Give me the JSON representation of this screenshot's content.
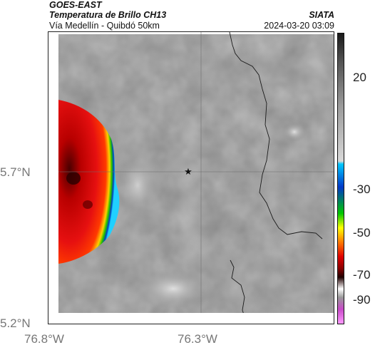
{
  "header": {
    "source": "GOES-EAST",
    "product": "Temperatura de Brillo CH13",
    "route": "Vía Medellín - Quibdó 50km",
    "agency": "SIATA",
    "datetime": "2024-03-20 03:09"
  },
  "map": {
    "lat_ticks": [
      "5.7°N",
      "5.2°N"
    ],
    "lon_ticks": [
      "76.8°W",
      "76.3°W"
    ],
    "marker": "star-marker",
    "marker_color": "#111111"
  },
  "colorbar": {
    "ticks": [
      "20",
      "-30",
      "-50",
      "-70",
      "-90"
    ],
    "stops": [
      "#1a1a1a",
      "#555555",
      "#9a9a9a",
      "#d8d8d8",
      "#00c8ff",
      "#0038c8",
      "#00c800",
      "#ffff00",
      "#ff7800",
      "#e00000",
      "#8a0000",
      "#200000",
      "#ffffff",
      "#c84ac8"
    ]
  }
}
